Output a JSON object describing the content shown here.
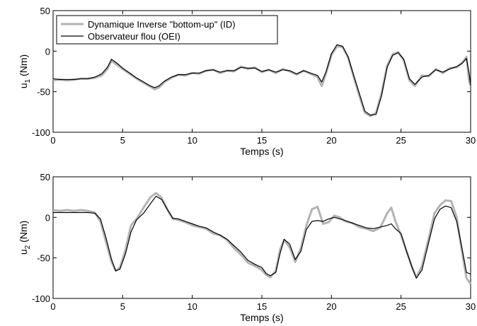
{
  "chart_data": [
    {
      "type": "line",
      "xlabel": "Temps (s)",
      "ylabel_main": "u",
      "ylabel_sub": "1",
      "ylabel_unit": "(Nm)",
      "xlim": [
        0,
        30
      ],
      "ylim": [
        -100,
        50
      ],
      "xticks": [
        "0",
        "5",
        "10",
        "15",
        "20",
        "25",
        "30"
      ],
      "yticks": [
        "-100",
        "-50",
        "0",
        "50"
      ],
      "grid": false,
      "legend_position": "top-left",
      "series": [
        {
          "name": "Dynamique Inverse \"bottom-up\" (ID)",
          "color": "#b3b3b3",
          "x": [
            0,
            0.5,
            1,
            1.5,
            2,
            2.5,
            3,
            3.5,
            3.9,
            4.2,
            4.6,
            5,
            5.5,
            6,
            6.5,
            7,
            7.3,
            7.6,
            8,
            8.5,
            9,
            9.5,
            10,
            10.5,
            11,
            11.5,
            12,
            12.5,
            13,
            13.5,
            14,
            14.5,
            15,
            15.5,
            16,
            16.5,
            17,
            17.5,
            18,
            18.5,
            19,
            19.3,
            19.6,
            20,
            20.4,
            20.8,
            21.2,
            21.6,
            22,
            22.4,
            22.8,
            23.2,
            23.6,
            24,
            24.4,
            24.8,
            25.2,
            25.6,
            26,
            26.5,
            27,
            27.5,
            28,
            28.5,
            29,
            29.4,
            29.7,
            29.9,
            30
          ],
          "values": [
            -36,
            -35,
            -36,
            -35,
            -34,
            -34,
            -33,
            -30,
            -22,
            -12,
            -17,
            -22,
            -28,
            -34,
            -39,
            -44,
            -47,
            -45,
            -38,
            -33,
            -29,
            -30,
            -27,
            -28,
            -24,
            -23,
            -27,
            -24,
            -25,
            -19,
            -22,
            -20,
            -26,
            -23,
            -27,
            -22,
            -25,
            -29,
            -24,
            -28,
            -32,
            -43,
            -28,
            -5,
            6,
            5,
            -8,
            -32,
            -55,
            -76,
            -80,
            -76,
            -52,
            -18,
            -4,
            -1,
            -12,
            -36,
            -43,
            -30,
            -31,
            -22,
            -27,
            -21,
            -20,
            -14,
            -7,
            -38,
            -42
          ]
        },
        {
          "name": "Observateur flou (OEI)",
          "color": "#000000",
          "x": [
            0,
            0.5,
            1,
            1.5,
            2,
            2.5,
            3,
            3.5,
            3.9,
            4.2,
            4.6,
            5,
            5.5,
            6,
            6.5,
            7,
            7.3,
            7.6,
            8,
            8.5,
            9,
            9.5,
            10,
            10.5,
            11,
            11.5,
            12,
            12.5,
            13,
            13.5,
            14,
            14.5,
            15,
            15.5,
            16,
            16.5,
            17,
            17.5,
            18,
            18.5,
            19,
            19.3,
            19.6,
            20,
            20.4,
            20.8,
            21.2,
            21.6,
            22,
            22.4,
            22.8,
            23.2,
            23.6,
            24,
            24.4,
            24.8,
            25.2,
            25.6,
            26,
            26.5,
            27,
            27.5,
            28,
            28.5,
            29,
            29.4,
            29.7,
            29.9,
            30
          ],
          "values": [
            -34,
            -35,
            -35,
            -35,
            -34,
            -34,
            -32,
            -28,
            -20,
            -10,
            -15,
            -21,
            -27,
            -33,
            -38,
            -43,
            -45,
            -43,
            -37,
            -32,
            -29,
            -29,
            -27,
            -27,
            -24,
            -23,
            -26,
            -24,
            -24,
            -20,
            -21,
            -21,
            -25,
            -23,
            -26,
            -23,
            -24,
            -28,
            -24,
            -27,
            -30,
            -38,
            -26,
            -3,
            8,
            6,
            -7,
            -30,
            -52,
            -74,
            -79,
            -78,
            -55,
            -20,
            -5,
            -2,
            -10,
            -34,
            -41,
            -32,
            -30,
            -23,
            -26,
            -22,
            -19,
            -15,
            -9,
            -28,
            -42
          ]
        }
      ]
    },
    {
      "type": "line",
      "xlabel": "Temps (s)",
      "ylabel_main": "u",
      "ylabel_sub": "2",
      "ylabel_unit": "(Nm)",
      "xlim": [
        0,
        30
      ],
      "ylim": [
        -100,
        50
      ],
      "xticks": [
        "0",
        "5",
        "10",
        "15",
        "20",
        "25",
        "30"
      ],
      "yticks": [
        "-100",
        "-50",
        "0",
        "50"
      ],
      "grid": false,
      "series": [
        {
          "name": "Dynamique Inverse \"bottom-up\" (ID)",
          "color": "#b3b3b3",
          "x": [
            0,
            0.5,
            1,
            1.5,
            2,
            2.5,
            3,
            3.4,
            3.8,
            4.2,
            4.5,
            4.8,
            5.2,
            5.6,
            6,
            6.5,
            7,
            7.4,
            7.8,
            8.2,
            8.6,
            9,
            9.5,
            10,
            10.5,
            11,
            11.5,
            12,
            12.5,
            13,
            13.5,
            14,
            14.5,
            15,
            15.3,
            15.6,
            16,
            16.3,
            16.6,
            17,
            17.4,
            17.8,
            18.2,
            18.6,
            19,
            19.4,
            19.8,
            20.2,
            20.6,
            21,
            21.5,
            22,
            22.5,
            23,
            23.5,
            24,
            24.3,
            24.6,
            25,
            25.4,
            25.8,
            26.1,
            26.5,
            27,
            27.4,
            27.8,
            28.2,
            28.6,
            29,
            29.4,
            29.7,
            30
          ],
          "values": [
            9,
            8,
            9,
            8,
            9,
            8,
            6,
            -5,
            -30,
            -55,
            -66,
            -62,
            -40,
            -10,
            -2,
            12,
            25,
            30,
            24,
            10,
            -2,
            -3,
            -6,
            -10,
            -12,
            -14,
            -20,
            -22,
            -28,
            -38,
            -46,
            -56,
            -60,
            -65,
            -71,
            -74,
            -66,
            -40,
            -28,
            -37,
            -55,
            -38,
            -10,
            10,
            13,
            -8,
            -6,
            2,
            0,
            -5,
            -7,
            -12,
            -14,
            -17,
            -13,
            5,
            12,
            -5,
            -22,
            -42,
            -62,
            -74,
            -60,
            -25,
            5,
            15,
            21,
            20,
            0,
            -45,
            -75,
            -82
          ]
        },
        {
          "name": "Observateur flou (OEI)",
          "color": "#000000",
          "x": [
            0,
            0.5,
            1,
            1.5,
            2,
            2.5,
            3,
            3.4,
            3.8,
            4.2,
            4.5,
            4.8,
            5.2,
            5.6,
            6,
            6.5,
            7,
            7.4,
            7.8,
            8.2,
            8.6,
            9,
            9.5,
            10,
            10.5,
            11,
            11.5,
            12,
            12.5,
            13,
            13.5,
            14,
            14.5,
            15,
            15.3,
            15.6,
            16,
            16.3,
            16.6,
            17,
            17.4,
            17.8,
            18.2,
            18.6,
            19,
            19.4,
            19.8,
            20.2,
            20.6,
            21,
            21.5,
            22,
            22.5,
            23,
            23.5,
            24,
            24.3,
            24.6,
            25,
            25.4,
            25.8,
            26.1,
            26.5,
            27,
            27.4,
            27.8,
            28.2,
            28.6,
            29,
            29.4,
            29.7,
            30
          ],
          "values": [
            6,
            6,
            6,
            6,
            6,
            6,
            5,
            -2,
            -25,
            -52,
            -66,
            -64,
            -45,
            -18,
            -3,
            5,
            17,
            26,
            22,
            10,
            -1,
            -2,
            -5,
            -8,
            -11,
            -13,
            -18,
            -22,
            -27,
            -35,
            -43,
            -53,
            -58,
            -62,
            -69,
            -72,
            -68,
            -45,
            -27,
            -33,
            -52,
            -42,
            -15,
            -5,
            -4,
            -5,
            -2,
            0,
            -2,
            -4,
            -7,
            -10,
            -13,
            -14,
            -12,
            -10,
            -8,
            -14,
            -20,
            -42,
            -62,
            -75,
            -65,
            -30,
            -2,
            10,
            14,
            12,
            -5,
            -40,
            -68,
            -70
          ]
        }
      ]
    }
  ]
}
